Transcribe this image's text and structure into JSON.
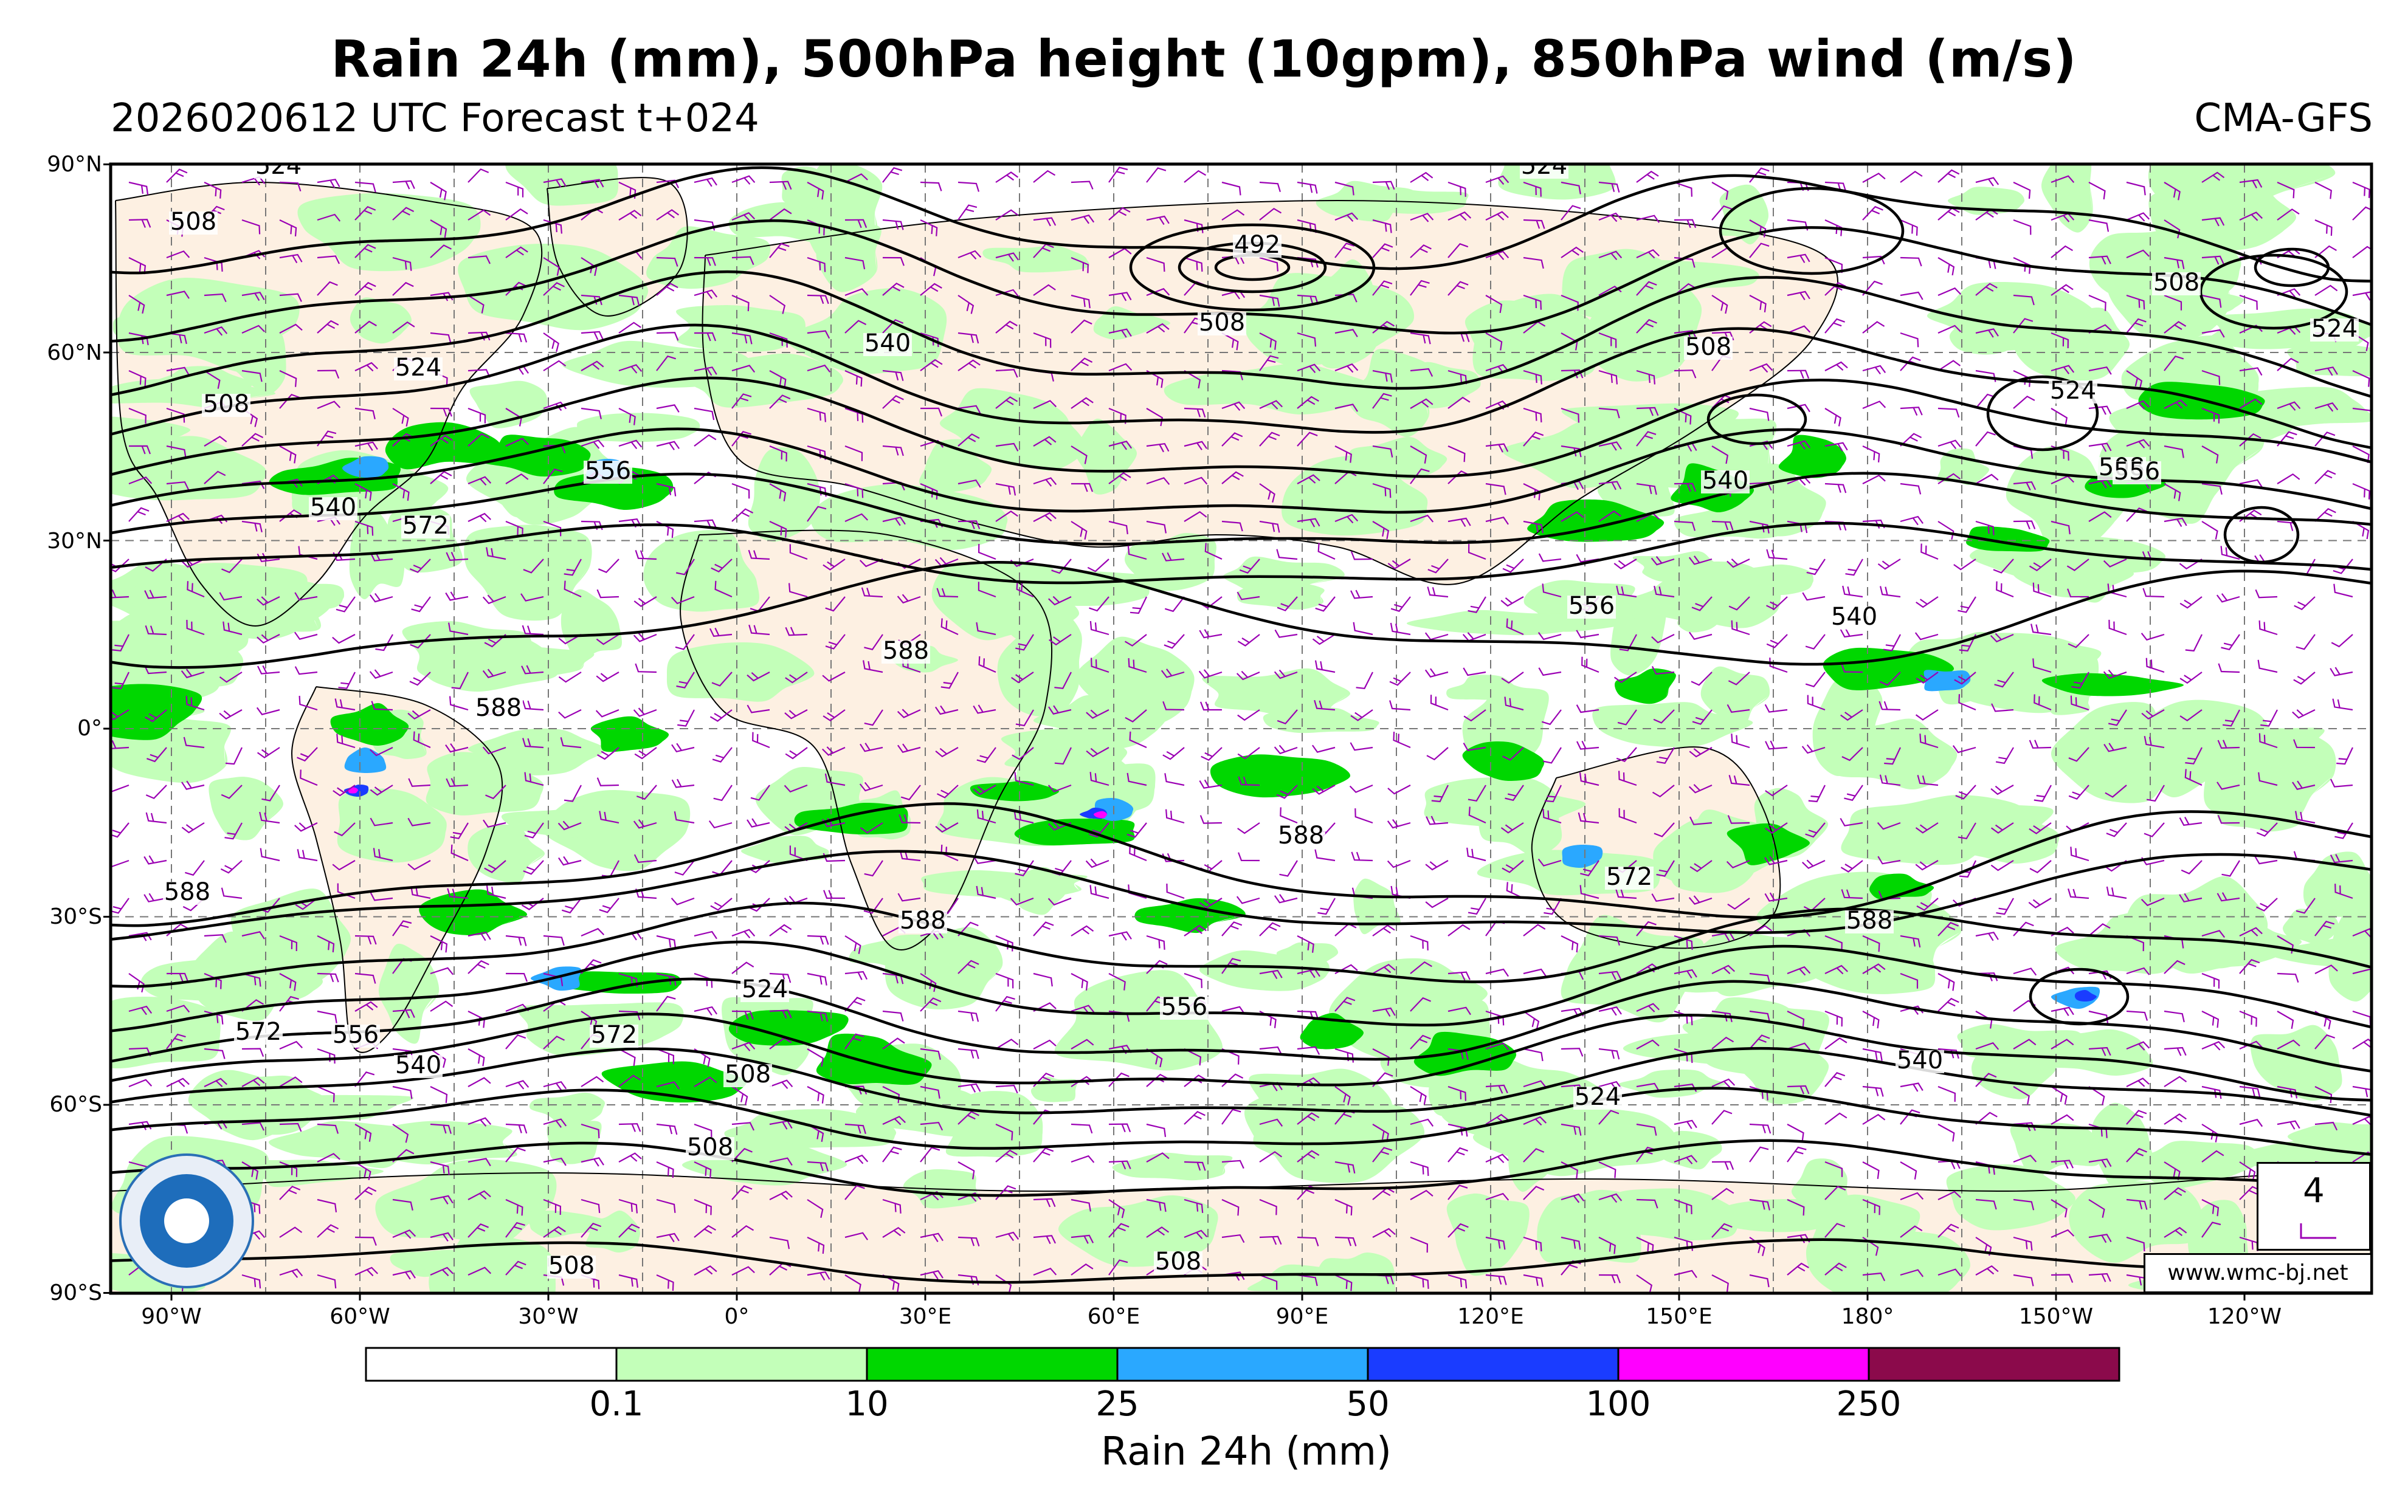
{
  "title": "Rain 24h (mm), 500hPa height (10gpm), 850hPa wind (m/s)",
  "subtitle_left": "2026020612 UTC Forecast t+024",
  "subtitle_right": "CMA-GFS",
  "lat_labels": [
    "90°N",
    "60°N",
    "30°N",
    "0°",
    "30°S",
    "60°S",
    "90°S"
  ],
  "lon_labels": [
    "90°W",
    "60°W",
    "30°W",
    "0°",
    "30°E",
    "60°E",
    "90°E",
    "120°E",
    "150°E",
    "180°",
    "150°W",
    "120°W"
  ],
  "contour_labels": [
    "524",
    "524",
    "508",
    "492",
    "508",
    "540",
    "508",
    "508",
    "508",
    "524",
    "524",
    "524",
    "508",
    "540",
    "556",
    "540",
    "556",
    "572",
    "540",
    "556",
    "572",
    "588",
    "588",
    "588",
    "588",
    "588",
    "588",
    "572",
    "556",
    "524",
    "540",
    "572",
    "556",
    "508",
    "524",
    "540",
    "508",
    "508",
    "508"
  ],
  "colorbar": {
    "colors": [
      "#ffffff",
      "#c3ffb9",
      "#00d700",
      "#2aa8ff",
      "#1a3cff",
      "#ff00ff",
      "#8b0a4b"
    ],
    "tick_labels": [
      "0.1",
      "10",
      "25",
      "50",
      "100",
      "250"
    ],
    "title": "Rain 24h (mm)"
  },
  "wind_legend_value": "4",
  "url": "www.wmc-bj.net",
  "colors": {
    "contour": "#000000",
    "wind_barb": "#9b00b4",
    "land_dry": "#fdf0e2",
    "ocean_dry": "#ffffff",
    "light_rain": "#c3ffb9",
    "moderate_rain": "#00d700",
    "heavy_rain": "#2aa8ff",
    "very_heavy_rain": "#1a3cff",
    "extreme_rain": "#ff00ff",
    "grid": "#777777"
  }
}
